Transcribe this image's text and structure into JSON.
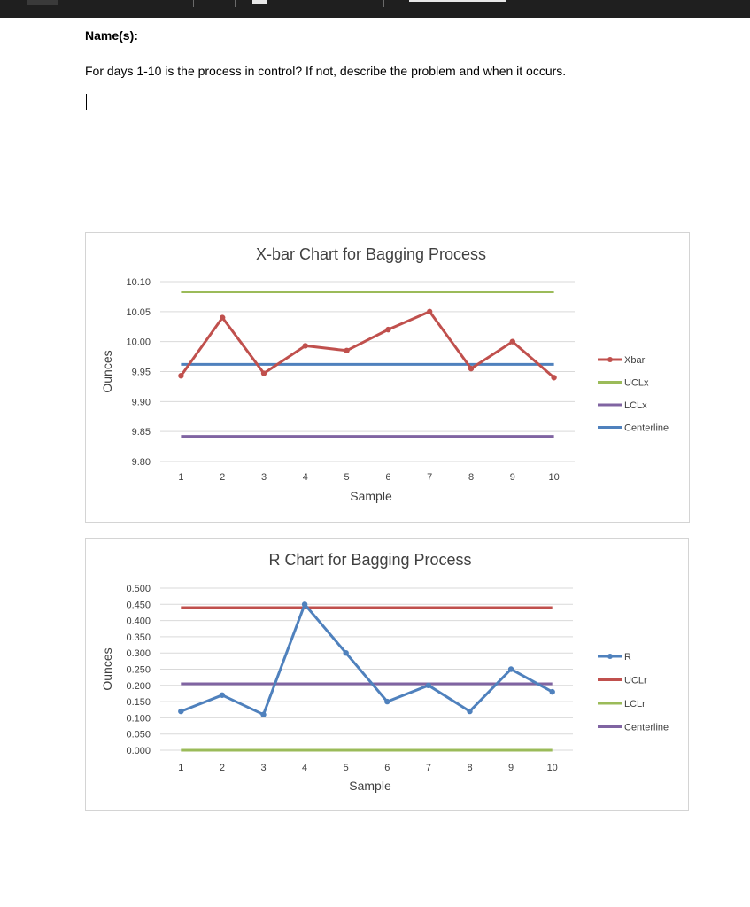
{
  "document": {
    "name_label": "Name(s):",
    "question": "For days 1-10 is the process in control?  If not, describe the problem and when it occurs."
  },
  "colors": {
    "red": "#c0504d",
    "blue": "#4f81bd",
    "green": "#9bbb59",
    "purple": "#8064a2",
    "grid": "#d9d9d9"
  },
  "chart_data": [
    {
      "type": "line",
      "title": "X-bar Chart for Bagging Process",
      "xlabel": "Sample",
      "ylabel": "Ounces",
      "x": [
        1,
        2,
        3,
        4,
        5,
        6,
        7,
        8,
        9,
        10
      ],
      "ylim": [
        9.8,
        10.1
      ],
      "yticks": [
        "10.10",
        "10.05",
        "10.00",
        "9.95",
        "9.90",
        "9.85",
        "9.80"
      ],
      "grid": true,
      "legend_position": "right",
      "series": [
        {
          "name": "Xbar",
          "color": "#c0504d",
          "markers": true,
          "values": [
            9.943,
            10.04,
            9.947,
            9.993,
            9.985,
            10.02,
            10.05,
            9.955,
            10.0,
            9.94
          ]
        },
        {
          "name": "UCLx",
          "color": "#9bbb59",
          "markers": false,
          "values": [
            10.083,
            10.083,
            10.083,
            10.083,
            10.083,
            10.083,
            10.083,
            10.083,
            10.083,
            10.083
          ]
        },
        {
          "name": "LCLx",
          "color": "#8064a2",
          "markers": false,
          "values": [
            9.842,
            9.842,
            9.842,
            9.842,
            9.842,
            9.842,
            9.842,
            9.842,
            9.842,
            9.842
          ]
        },
        {
          "name": "Centerline",
          "color": "#4f81bd",
          "markers": false,
          "values": [
            9.962,
            9.962,
            9.962,
            9.962,
            9.962,
            9.962,
            9.962,
            9.962,
            9.962,
            9.962
          ]
        }
      ]
    },
    {
      "type": "line",
      "title": "R Chart for Bagging Process",
      "xlabel": "Sample",
      "ylabel": "Ounces",
      "x": [
        1,
        2,
        3,
        4,
        5,
        6,
        7,
        8,
        9,
        10
      ],
      "ylim": [
        0.0,
        0.5
      ],
      "yticks": [
        "0.500",
        "0.450",
        "0.400",
        "0.350",
        "0.300",
        "0.250",
        "0.200",
        "0.150",
        "0.100",
        "0.050",
        "0.000"
      ],
      "grid": true,
      "legend_position": "right",
      "series": [
        {
          "name": "R",
          "color": "#4f81bd",
          "markers": true,
          "values": [
            0.12,
            0.17,
            0.11,
            0.45,
            0.3,
            0.15,
            0.2,
            0.12,
            0.25,
            0.18
          ]
        },
        {
          "name": "UCLr",
          "color": "#c0504d",
          "markers": false,
          "values": [
            0.44,
            0.44,
            0.44,
            0.44,
            0.44,
            0.44,
            0.44,
            0.44,
            0.44,
            0.44
          ]
        },
        {
          "name": "LCLr",
          "color": "#9bbb59",
          "markers": false,
          "values": [
            0.0,
            0.0,
            0.0,
            0.0,
            0.0,
            0.0,
            0.0,
            0.0,
            0.0,
            0.0
          ]
        },
        {
          "name": "Centerline",
          "color": "#8064a2",
          "markers": false,
          "values": [
            0.205,
            0.205,
            0.205,
            0.205,
            0.205,
            0.205,
            0.205,
            0.205,
            0.205,
            0.205
          ]
        }
      ]
    }
  ]
}
